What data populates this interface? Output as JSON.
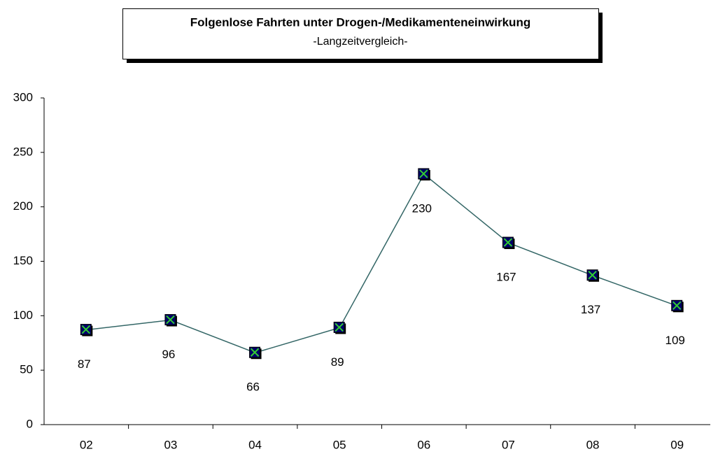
{
  "chart_data": {
    "type": "line",
    "title": "Folgenlose Fahrten unter Drogen-/Medikamenteneinwirkung",
    "subtitle": "-Langzeitvergleich-",
    "categories": [
      "02",
      "03",
      "04",
      "05",
      "06",
      "07",
      "08",
      "09"
    ],
    "values": [
      87,
      96,
      66,
      89,
      230,
      167,
      137,
      109
    ],
    "color": "#336666",
    "marker_color": "#000066",
    "marker_cross_color": "#33cc33",
    "ylim": [
      0,
      300
    ],
    "yticks": [
      0,
      50,
      100,
      150,
      200,
      250,
      300
    ],
    "grid": false
  }
}
